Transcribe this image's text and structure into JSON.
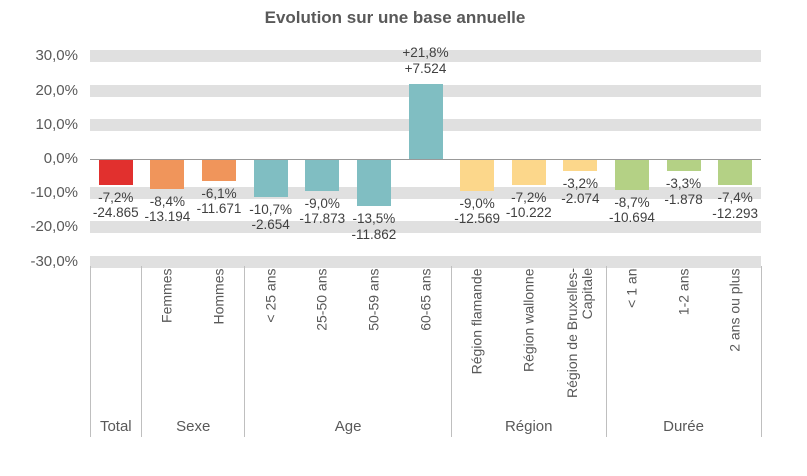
{
  "title": "Evolution sur une base annuelle",
  "chart_data": {
    "type": "bar",
    "title": "Evolution sur une base annuelle",
    "xlabel": "",
    "ylabel": "",
    "ylim": [
      -30,
      30
    ],
    "grid": "horizontal-gray-bands-every-10pct",
    "legend": null,
    "y_ticks": [
      {
        "value": 30,
        "label": "30,0%"
      },
      {
        "value": 20,
        "label": "20,0%"
      },
      {
        "value": 10,
        "label": "10,0%"
      },
      {
        "value": 0,
        "label": "0,0%"
      },
      {
        "value": -10,
        "label": "-10,0%"
      },
      {
        "value": -20,
        "label": "-20,0%"
      },
      {
        "value": -30,
        "label": "-30,0%"
      }
    ],
    "groups": [
      {
        "label": "Total",
        "color": "#e1302e",
        "bars": [
          {
            "category": "",
            "pct": -7.2,
            "pct_label": "-7,2%",
            "value_label": "-24.865"
          }
        ]
      },
      {
        "label": "Sexe",
        "color": "#f0955b",
        "bars": [
          {
            "category": "Femmes",
            "pct": -8.4,
            "pct_label": "-8,4%",
            "value_label": "-13.194"
          },
          {
            "category": "Hommes",
            "pct": -6.1,
            "pct_label": "-6,1%",
            "value_label": "-11.671"
          }
        ]
      },
      {
        "label": "Age",
        "color": "#80bec2",
        "bars": [
          {
            "category": "< 25 ans",
            "pct": -10.7,
            "pct_label": "-10,7%",
            "value_label": "-2.654"
          },
          {
            "category": "25-50 ans",
            "pct": -9.0,
            "pct_label": "-9,0%",
            "value_label": "-17.873"
          },
          {
            "category": "50-59 ans",
            "pct": -13.5,
            "pct_label": "-13,5%",
            "value_label": "-11.862"
          },
          {
            "category": "60-65 ans",
            "pct": 21.8,
            "pct_label": "+21,8%",
            "value_label": "+7.524"
          }
        ]
      },
      {
        "label": "Région",
        "color": "#fcd78b",
        "bars": [
          {
            "category": "Région flamande",
            "pct": -9.0,
            "pct_label": "-9,0%",
            "value_label": "-12.569"
          },
          {
            "category": "Région wallonne",
            "pct": -7.2,
            "pct_label": "-7,2%",
            "value_label": "-10.222"
          },
          {
            "category": "Région de Bruxelles-\nCapitale",
            "pct": -3.2,
            "pct_label": "-3,2%",
            "value_label": "-2.074"
          }
        ]
      },
      {
        "label": "Durée",
        "color": "#b4d185",
        "bars": [
          {
            "category": "< 1 an",
            "pct": -8.7,
            "pct_label": "-8,7%",
            "value_label": "-10.694"
          },
          {
            "category": "1-2 ans",
            "pct": -3.3,
            "pct_label": "-3,3%",
            "value_label": "-1.878"
          },
          {
            "category": "2 ans ou plus",
            "pct": -7.4,
            "pct_label": "-7,4%",
            "value_label": "-12.293"
          }
        ]
      }
    ],
    "colors": {
      "band": "#e0e0e0",
      "zero_axis_line": "#999999",
      "category_divider": "#bfbfbf",
      "axis_text": "#595959",
      "data_label_text": "#404040",
      "title_text": "#595959"
    }
  }
}
